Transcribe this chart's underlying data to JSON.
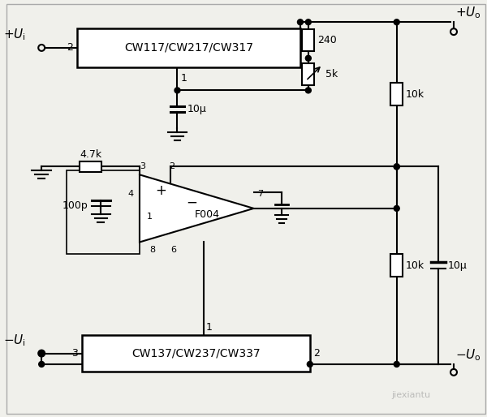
{
  "bg_color": "#f0f0eb",
  "line_color": "#000000",
  "ic1_label": "CW117/CW217/CW317",
  "ic2_label": "CW137/CW237/CW337",
  "opamp_label": "F004",
  "r1_label": "240",
  "r2_label": "5k",
  "r3_label": "10k",
  "r4_label": "4.7k",
  "r5_label": "10k",
  "c1_label": "10μ",
  "c2_label": "100p",
  "c3_label": "10μ",
  "vpos_in": "+U_i",
  "vneg_in": "-U_i",
  "vpos_out": "+U_o",
  "vneg_out": "-U_o",
  "watermark": "jiexiantu"
}
